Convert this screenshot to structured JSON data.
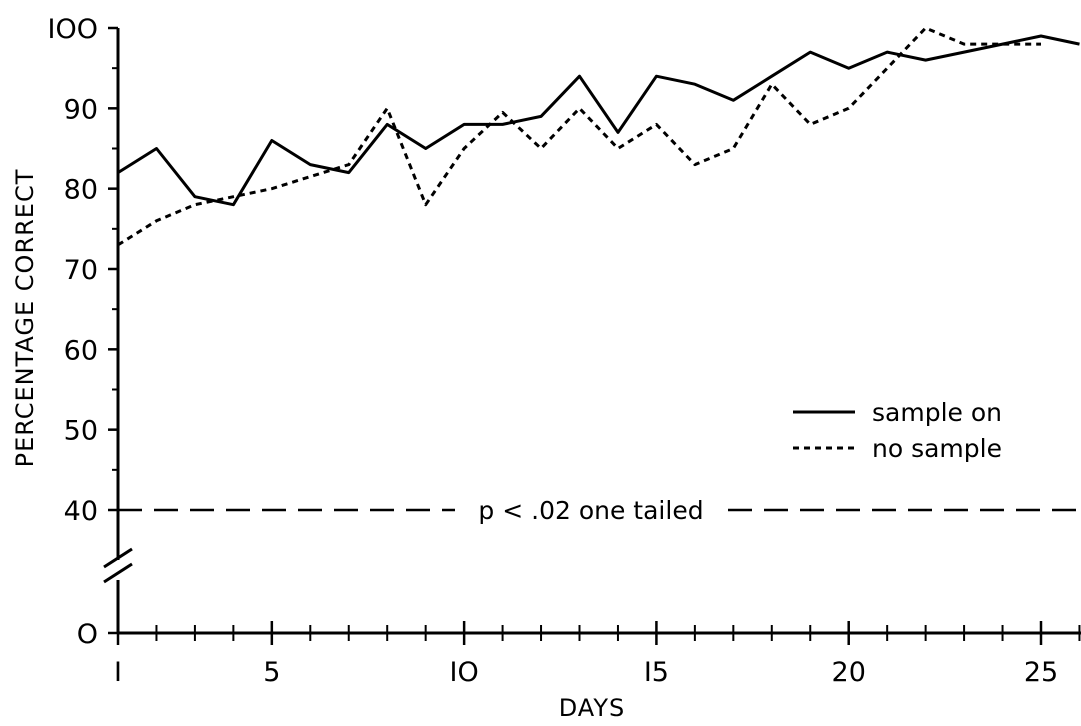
{
  "chart_data": {
    "type": "line",
    "xlabel": "DAYS",
    "ylabel": "PERCENTAGE CORRECT",
    "xlim": [
      1,
      26
    ],
    "ylim": [
      0,
      100
    ],
    "axis_break": [
      0,
      40
    ],
    "x_ticks": [
      1,
      5,
      10,
      15,
      20,
      25
    ],
    "x_tick_labels": [
      "I",
      "5",
      "IO",
      "I5",
      "20",
      "25"
    ],
    "y_ticks": [
      0,
      40,
      50,
      60,
      70,
      80,
      90,
      100
    ],
    "y_tick_labels": [
      "O",
      "40",
      "50",
      "60",
      "70",
      "80",
      "90",
      "IOO"
    ],
    "x": [
      1,
      2,
      3,
      4,
      5,
      6,
      7,
      8,
      9,
      10,
      11,
      12,
      13,
      14,
      15,
      16,
      17,
      18,
      19,
      20,
      21,
      22,
      23,
      24,
      25,
      26
    ],
    "series": [
      {
        "name": "sample on",
        "style": "solid",
        "values": [
          82,
          85,
          79,
          78,
          86,
          83,
          82,
          88,
          85,
          88,
          88,
          89,
          94,
          87,
          94,
          93,
          91,
          94,
          97,
          95,
          97,
          96,
          97,
          98,
          99,
          98
        ]
      },
      {
        "name": "no sample",
        "style": "dotted",
        "values": [
          73,
          76,
          78,
          79,
          80,
          81.5,
          83,
          90,
          78,
          85,
          89.5,
          85,
          90,
          85,
          88,
          83,
          85,
          93,
          88,
          90,
          95,
          100,
          98,
          98,
          98,
          null
        ]
      }
    ],
    "threshold": {
      "value": 40,
      "label": "p < .02 one tailed"
    },
    "legend_position": "right",
    "grid": false
  }
}
